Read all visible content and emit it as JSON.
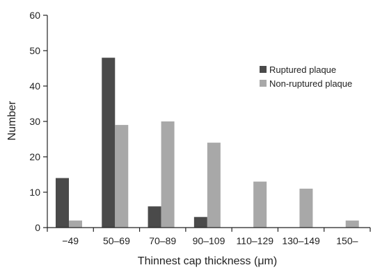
{
  "chart_data": {
    "type": "bar",
    "title": "",
    "xlabel": "Thinnest cap thickness (μm)",
    "ylabel": "Number",
    "ylim": [
      0,
      60
    ],
    "yticks": [
      0,
      10,
      20,
      30,
      40,
      50,
      60
    ],
    "categories": [
      "−49",
      "50–69",
      "70–89",
      "90–109",
      "110–129",
      "130–149",
      "150–"
    ],
    "series": [
      {
        "name": "Ruptured plaque",
        "values": [
          14,
          48,
          6,
          3,
          0,
          0,
          0
        ],
        "color": "#4a4a4a"
      },
      {
        "name": "Non-ruptured plaque",
        "values": [
          2,
          29,
          30,
          24,
          13,
          11,
          2
        ],
        "color": "#a8a8a8"
      }
    ],
    "legend_position": "top-right",
    "grid": false
  }
}
